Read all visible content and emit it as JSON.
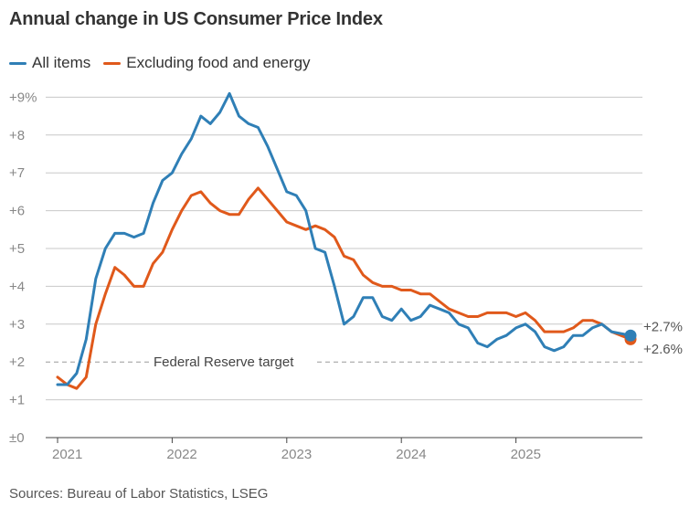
{
  "chart_data": {
    "type": "line",
    "title": "Annual change in US Consumer Price Index",
    "xlabel": "",
    "ylabel": "",
    "ylim": [
      0,
      9
    ],
    "y_ticks": [
      {
        "value": 0,
        "label": "±0"
      },
      {
        "value": 1,
        "label": "+1"
      },
      {
        "value": 2,
        "label": "+2"
      },
      {
        "value": 3,
        "label": "+3"
      },
      {
        "value": 4,
        "label": "+4"
      },
      {
        "value": 5,
        "label": "+5"
      },
      {
        "value": 6,
        "label": "+6"
      },
      {
        "value": 7,
        "label": "+7"
      },
      {
        "value": 8,
        "label": "+8"
      },
      {
        "value": 9,
        "label": "+9%"
      }
    ],
    "x_range": [
      "2021-01",
      "2025-11"
    ],
    "x_ticks": [
      {
        "index": 0,
        "label": "2021"
      },
      {
        "index": 12,
        "label": "2022"
      },
      {
        "index": 24,
        "label": "2023"
      },
      {
        "index": 36,
        "label": "2024"
      },
      {
        "index": 48,
        "label": "2025"
      }
    ],
    "reference_line": {
      "value": 2,
      "label": "Federal Reserve target"
    },
    "series": [
      {
        "name": "All items",
        "color": "#2f7fb6",
        "end_label": "+2.7%",
        "values": [
          1.4,
          1.4,
          1.7,
          2.6,
          4.2,
          5.0,
          5.4,
          5.4,
          5.3,
          5.4,
          6.2,
          6.8,
          7.0,
          7.5,
          7.9,
          8.5,
          8.3,
          8.6,
          9.1,
          8.5,
          8.3,
          8.2,
          7.7,
          7.1,
          6.5,
          6.4,
          6.0,
          5.0,
          4.9,
          4.0,
          3.0,
          3.2,
          3.7,
          3.7,
          3.2,
          3.1,
          3.4,
          3.1,
          3.2,
          3.5,
          3.4,
          3.3,
          3.0,
          2.9,
          2.5,
          2.4,
          2.6,
          2.7,
          2.9,
          3.0,
          2.8,
          2.4,
          2.3,
          2.4,
          2.7,
          2.7,
          2.9,
          3.0,
          2.8,
          null,
          2.7
        ]
      },
      {
        "name": "Excluding food and energy",
        "color": "#e0591b",
        "end_label": "+2.6%",
        "values": [
          1.6,
          1.4,
          1.3,
          1.6,
          3.0,
          3.8,
          4.5,
          4.3,
          4.0,
          4.0,
          4.6,
          4.9,
          5.5,
          6.0,
          6.4,
          6.5,
          6.2,
          6.0,
          5.9,
          5.9,
          6.3,
          6.6,
          6.3,
          6.0,
          5.7,
          5.6,
          5.5,
          5.6,
          5.5,
          5.3,
          4.8,
          4.7,
          4.3,
          4.1,
          4.0,
          4.0,
          3.9,
          3.9,
          3.8,
          3.8,
          3.6,
          3.4,
          3.3,
          3.2,
          3.2,
          3.3,
          3.3,
          3.3,
          3.2,
          3.3,
          3.1,
          2.8,
          2.8,
          2.8,
          2.9,
          3.1,
          3.1,
          3.0,
          2.8,
          null,
          2.6
        ]
      }
    ]
  },
  "source": "Sources: Bureau of Labor Statistics, LSEG"
}
